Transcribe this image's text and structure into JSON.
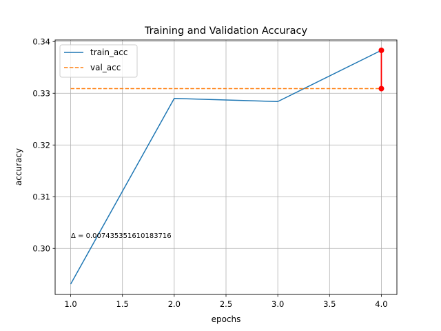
{
  "chart_data": {
    "type": "line",
    "title": "Training and Validation Accuracy",
    "xlabel": "epochs",
    "ylabel": "accuracy",
    "xlim": [
      0.85,
      4.15
    ],
    "ylim": [
      0.2911,
      0.3403
    ],
    "grid": true,
    "legend_position": "upper left",
    "x_ticks": [
      1.0,
      1.5,
      2.0,
      2.5,
      3.0,
      3.5,
      4.0
    ],
    "x_tick_labels": [
      "1.0",
      "1.5",
      "2.0",
      "2.5",
      "3.0",
      "3.5",
      "4.0"
    ],
    "y_ticks": [
      0.3,
      0.31,
      0.32,
      0.33,
      0.34
    ],
    "y_tick_labels": [
      "0.30",
      "0.31",
      "0.32",
      "0.33",
      "0.34"
    ],
    "x": [
      1,
      2,
      3,
      4
    ],
    "series": [
      {
        "name": "train_acc",
        "values": [
          0.2931,
          0.329,
          0.3284,
          0.3383
        ],
        "color": "#1f77b4",
        "style": "solid"
      },
      {
        "name": "val_acc",
        "values": [
          0.3309,
          0.3309,
          0.3309,
          0.3309
        ],
        "color": "#ff7f0e",
        "style": "dashed"
      }
    ],
    "gap_marker": {
      "x": 4,
      "y_top": 0.3383,
      "y_bottom": 0.3309,
      "color": "#ff0000"
    },
    "annotation": {
      "text": "Δ = 0.007435351610183716",
      "x": 1.0,
      "y": 0.3022
    }
  }
}
